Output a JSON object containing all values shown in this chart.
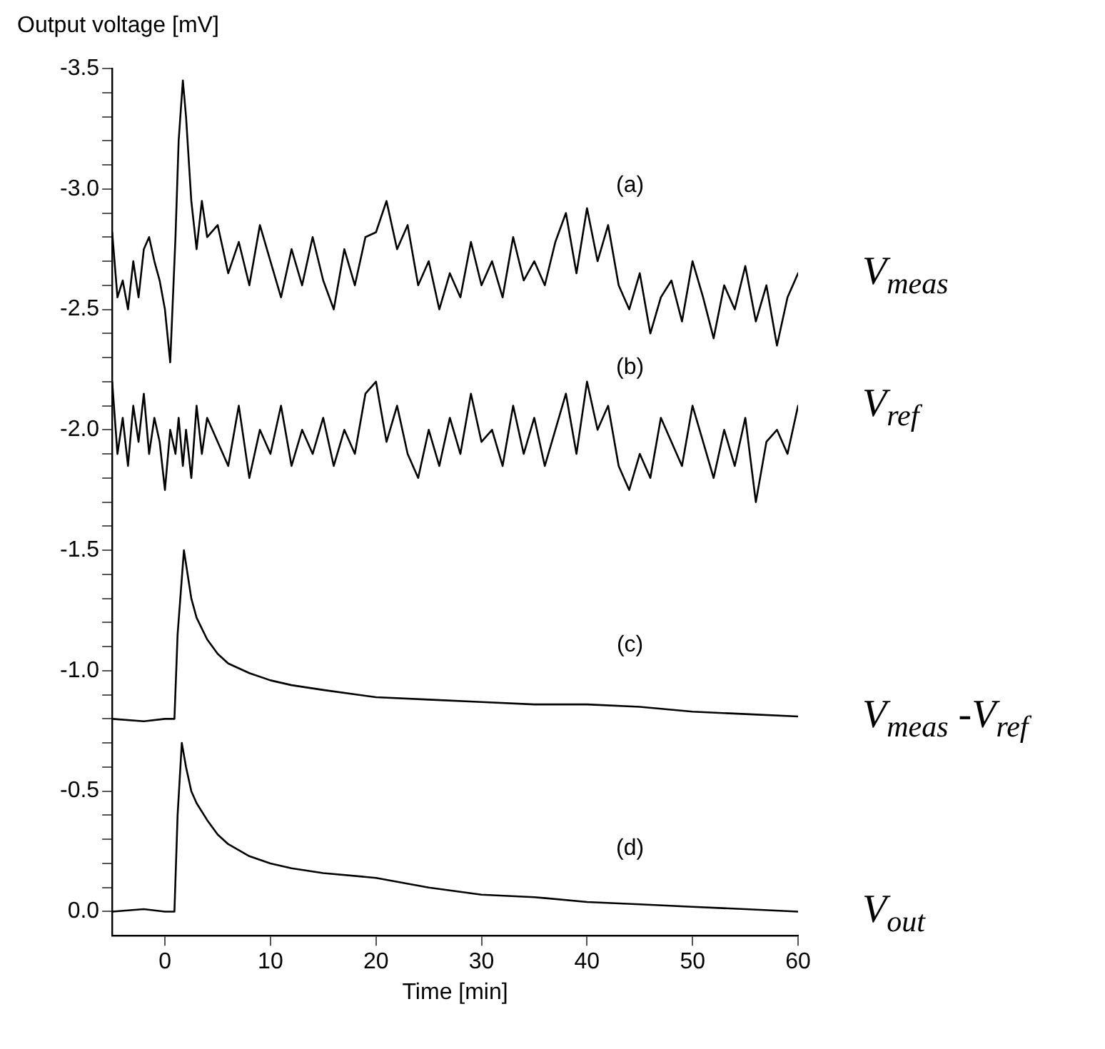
{
  "chart_data": {
    "type": "line",
    "ylabel": "Output voltage [mV]",
    "xlabel": "Time [min]",
    "xlim": [
      -5,
      60
    ],
    "xticks": [
      0,
      10,
      20,
      30,
      40,
      50,
      60
    ],
    "ylim": [
      0.1,
      -3.5
    ],
    "yticks": [
      -3.5,
      {
        "value": -3.4,
        "label": null
      },
      {
        "value": -3.3,
        "label": null
      },
      {
        "value": -3.2,
        "label": null
      },
      {
        "value": -3.1,
        "label": null
      },
      {
        "value": -3,
        "label": "-3.0"
      },
      {
        "value": -2.9,
        "label": null
      },
      {
        "value": -2.8,
        "label": null
      },
      {
        "value": -2.7,
        "label": null
      },
      {
        "value": -2.6,
        "label": null
      },
      -2.5,
      {
        "value": -2.4,
        "label": null
      },
      {
        "value": -2.3,
        "label": null
      },
      {
        "value": -2.2,
        "label": null
      },
      {
        "value": -2.1,
        "label": null
      },
      {
        "value": -2,
        "label": "-2.0"
      },
      {
        "value": -1.9,
        "label": null
      },
      {
        "value": -1.8,
        "label": null
      },
      {
        "value": -1.7,
        "label": null
      },
      {
        "value": -1.6,
        "label": null
      },
      -1.5,
      {
        "value": -1.4,
        "label": null
      },
      {
        "value": -1.3,
        "label": null
      },
      {
        "value": -1.2,
        "label": null
      },
      {
        "value": -1.1,
        "label": null
      },
      {
        "value": -1,
        "label": "-1.0"
      },
      {
        "value": -0.9,
        "label": null
      },
      {
        "value": -0.8,
        "label": null
      },
      {
        "value": -0.7,
        "label": null
      },
      {
        "value": -0.6,
        "label": null
      },
      -0.5,
      {
        "value": -0.4,
        "label": null
      },
      {
        "value": -0.3,
        "label": null
      },
      {
        "value": -0.2,
        "label": null
      },
      {
        "value": -0.1,
        "label": null
      },
      {
        "value": 0,
        "label": "0.0"
      }
    ],
    "grid": false,
    "marker": "none",
    "line_style": "solid",
    "annotations": [
      "(a)",
      "(b)",
      "(c)",
      "(d)"
    ],
    "series": [
      {
        "name": "V$_{meas}$",
        "color": "#000000",
        "x": [
          -5,
          -4.5,
          -4,
          -3.5,
          -3,
          -2.5,
          -2,
          -1.5,
          -1,
          -0.5,
          0,
          0.5,
          1,
          1.3,
          1.7,
          2,
          2.5,
          3,
          3.5,
          4,
          5,
          6,
          7,
          8,
          9,
          10,
          11,
          12,
          13,
          14,
          15,
          16,
          17,
          18,
          19,
          20,
          21,
          22,
          23,
          24,
          25,
          26,
          27,
          28,
          29,
          30,
          31,
          32,
          33,
          34,
          35,
          36,
          37,
          38,
          39,
          40,
          41,
          42,
          43,
          44,
          45,
          46,
          47,
          48,
          49,
          50,
          51,
          52,
          53,
          54,
          55,
          56,
          57,
          58,
          59,
          60
        ],
        "values": [
          -2.82,
          -2.55,
          -2.62,
          -2.5,
          -2.7,
          -2.55,
          -2.75,
          -2.8,
          -2.7,
          -2.62,
          -2.5,
          -2.28,
          -2.8,
          -3.2,
          -3.45,
          -3.3,
          -2.95,
          -2.75,
          -2.95,
          -2.8,
          -2.85,
          -2.65,
          -2.78,
          -2.6,
          -2.85,
          -2.7,
          -2.55,
          -2.75,
          -2.6,
          -2.8,
          -2.62,
          -2.5,
          -2.75,
          -2.6,
          -2.8,
          -2.82,
          -2.95,
          -2.75,
          -2.85,
          -2.6,
          -2.7,
          -2.5,
          -2.65,
          -2.55,
          -2.78,
          -2.6,
          -2.7,
          -2.55,
          -2.8,
          -2.62,
          -2.7,
          -2.6,
          -2.78,
          -2.9,
          -2.65,
          -2.92,
          -2.7,
          -2.85,
          -2.6,
          -2.5,
          -2.65,
          -2.4,
          -2.55,
          -2.62,
          -2.45,
          -2.7,
          -2.55,
          -2.38,
          -2.6,
          -2.5,
          -2.68,
          -2.45,
          -2.6,
          -2.35,
          -2.55,
          -2.65
        ]
      },
      {
        "name": "V$_{ref}$",
        "color": "#000000",
        "x": [
          -5,
          -4.5,
          -4,
          -3.5,
          -3,
          -2.5,
          -2,
          -1.5,
          -1,
          -0.5,
          0,
          0.5,
          1,
          1.3,
          1.7,
          2,
          2.5,
          3,
          3.5,
          4,
          5,
          6,
          7,
          8,
          9,
          10,
          11,
          12,
          13,
          14,
          15,
          16,
          17,
          18,
          19,
          20,
          21,
          22,
          23,
          24,
          25,
          26,
          27,
          28,
          29,
          30,
          31,
          32,
          33,
          34,
          35,
          36,
          37,
          38,
          39,
          40,
          41,
          42,
          43,
          44,
          45,
          46,
          47,
          48,
          49,
          50,
          51,
          52,
          53,
          54,
          55,
          56,
          57,
          58,
          59,
          60
        ],
        "values": [
          -2.2,
          -1.9,
          -2.05,
          -1.85,
          -2.1,
          -1.95,
          -2.15,
          -1.9,
          -2.05,
          -1.95,
          -1.75,
          -2.0,
          -1.9,
          -2.05,
          -1.85,
          -2.0,
          -1.8,
          -2.1,
          -1.9,
          -2.05,
          -1.95,
          -1.85,
          -2.1,
          -1.8,
          -2.0,
          -1.9,
          -2.1,
          -1.85,
          -2.0,
          -1.9,
          -2.05,
          -1.85,
          -2.0,
          -1.9,
          -2.15,
          -2.2,
          -1.95,
          -2.1,
          -1.9,
          -1.8,
          -2.0,
          -1.85,
          -2.05,
          -1.9,
          -2.15,
          -1.95,
          -2.0,
          -1.85,
          -2.1,
          -1.9,
          -2.05,
          -1.85,
          -2.0,
          -2.15,
          -1.9,
          -2.2,
          -2.0,
          -2.1,
          -1.85,
          -1.75,
          -1.9,
          -1.8,
          -2.05,
          -1.95,
          -1.85,
          -2.1,
          -1.95,
          -1.8,
          -2.0,
          -1.85,
          -2.05,
          -1.7,
          -1.95,
          -2.0,
          -1.9,
          -2.1
        ]
      },
      {
        "name": "V$_{meas}$ -V$_{ref}$",
        "color": "#000000",
        "x": [
          -5,
          -2,
          0,
          0.9,
          1.2,
          1.8,
          2.5,
          3,
          4,
          5,
          6,
          8,
          10,
          12,
          15,
          20,
          25,
          30,
          35,
          40,
          45,
          50,
          55,
          60
        ],
        "values": [
          -0.8,
          -0.79,
          -0.8,
          -0.8,
          -1.15,
          -1.5,
          -1.3,
          -1.22,
          -1.13,
          -1.07,
          -1.03,
          -0.99,
          -0.96,
          -0.94,
          -0.92,
          -0.89,
          -0.88,
          -0.87,
          -0.86,
          -0.86,
          -0.85,
          -0.83,
          -0.82,
          -0.81
        ]
      },
      {
        "name": "V$_{out}$",
        "color": "#000000",
        "x": [
          -5,
          -2,
          0,
          0.9,
          1.2,
          1.6,
          2,
          2.5,
          3,
          4,
          5,
          6,
          8,
          10,
          12,
          15,
          20,
          25,
          30,
          35,
          40,
          45,
          50,
          55,
          60
        ],
        "values": [
          0,
          -0.01,
          0,
          0,
          -0.4,
          -0.7,
          -0.6,
          -0.5,
          -0.45,
          -0.38,
          -0.32,
          -0.28,
          -0.23,
          -0.2,
          -0.18,
          -0.16,
          -0.14,
          -0.1,
          -0.07,
          -0.06,
          -0.04,
          -0.03,
          -0.02,
          -0.01,
          0
        ]
      }
    ]
  }
}
